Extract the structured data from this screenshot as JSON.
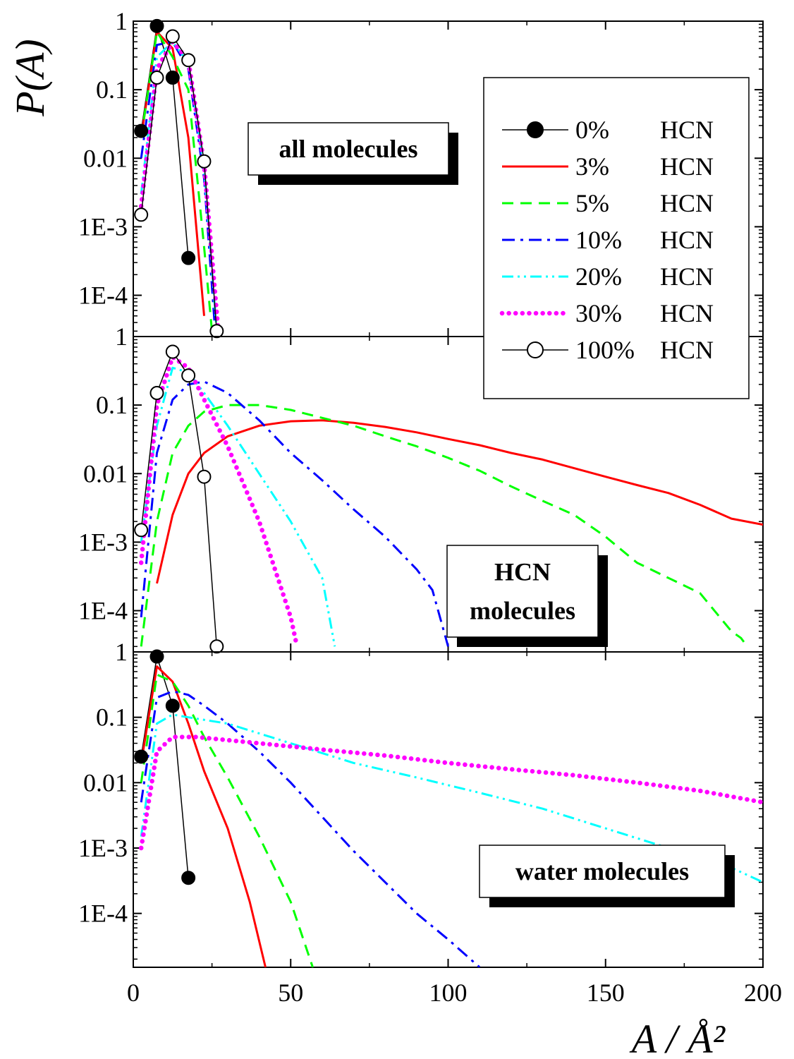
{
  "chart_data": {
    "type": "line",
    "y_scale": "log",
    "grid": false,
    "ylabel": "P(A)",
    "xlabel": "A / Å²",
    "xlim": [
      0,
      200
    ],
    "x_ticks": [
      0,
      50,
      100,
      150,
      200
    ],
    "y_tick_values": [
      1,
      0.1,
      0.01,
      0.001,
      0.0001
    ],
    "y_tick_labels": [
      "1",
      "0.1",
      "0.01",
      "1E-3",
      "1E-4"
    ],
    "legend_placement": "top-right",
    "legend": [
      {
        "key": "0",
        "pct": "0%",
        "label": "HCN",
        "color": "#000000",
        "style": "filled-circle"
      },
      {
        "key": "3",
        "pct": "3%",
        "label": "HCN",
        "color": "#ff0000",
        "style": "solid"
      },
      {
        "key": "5",
        "pct": "5%",
        "label": "HCN",
        "color": "#00ff00",
        "style": "dash"
      },
      {
        "key": "10",
        "pct": "10%",
        "label": "HCN",
        "color": "#0000ff",
        "style": "dash-dot"
      },
      {
        "key": "20",
        "pct": "20%",
        "label": "HCN",
        "color": "#00ffff",
        "style": "dash-dot-dot"
      },
      {
        "key": "30",
        "pct": "30%",
        "label": "HCN",
        "color": "#ff00ff",
        "style": "dotted"
      },
      {
        "key": "100",
        "pct": "100%",
        "label": "HCN",
        "color": "#000000",
        "style": "open-circle"
      }
    ],
    "panels": [
      {
        "box_lines": [
          "all molecules"
        ],
        "ylim": [
          2.5e-05,
          1
        ],
        "series": [
          {
            "key": "0",
            "points": [
              [
                2.5,
                0.025
              ],
              [
                7.5,
                0.85
              ],
              [
                12.5,
                0.15
              ],
              [
                17.5,
                0.00035
              ]
            ]
          },
          {
            "key": "3",
            "points": [
              [
                2.5,
                0.02
              ],
              [
                7.5,
                0.7
              ],
              [
                12.5,
                0.4
              ],
              [
                17.5,
                0.02
              ],
              [
                22.5,
                5e-05
              ]
            ]
          },
          {
            "key": "5",
            "points": [
              [
                2.5,
                0.02
              ],
              [
                7.5,
                0.7
              ],
              [
                12.5,
                0.3
              ],
              [
                17.5,
                0.1
              ],
              [
                22.5,
                0.0005
              ],
              [
                25,
                3e-05
              ]
            ]
          },
          {
            "key": "10",
            "points": [
              [
                2.5,
                0.01
              ],
              [
                7.5,
                0.45
              ],
              [
                12.5,
                0.5
              ],
              [
                17.5,
                0.2
              ],
              [
                22.5,
                0.005
              ],
              [
                26,
                3e-05
              ]
            ]
          },
          {
            "key": "20",
            "points": [
              [
                2.5,
                0.003
              ],
              [
                7.5,
                0.3
              ],
              [
                12.5,
                0.5
              ],
              [
                17.5,
                0.25
              ],
              [
                22.5,
                0.007
              ],
              [
                26.5,
                3e-05
              ]
            ]
          },
          {
            "key": "30",
            "points": [
              [
                2.5,
                0.002
              ],
              [
                7.5,
                0.2
              ],
              [
                12.5,
                0.5
              ],
              [
                17.5,
                0.27
              ],
              [
                22.5,
                0.008
              ],
              [
                27,
                3e-05
              ]
            ]
          },
          {
            "key": "100",
            "points": [
              [
                2.5,
                0.0015
              ],
              [
                7.5,
                0.15
              ],
              [
                12.5,
                0.6
              ],
              [
                17.5,
                0.27
              ],
              [
                22.5,
                0.009
              ],
              [
                26.5,
                3e-05
              ]
            ]
          }
        ]
      },
      {
        "box_lines": [
          "HCN",
          "molecules"
        ],
        "ylim": [
          2.5e-05,
          1
        ],
        "series": [
          {
            "key": "3",
            "points": [
              [
                7.5,
                0.00025
              ],
              [
                12.5,
                0.0025
              ],
              [
                17.5,
                0.01
              ],
              [
                22.5,
                0.02
              ],
              [
                30,
                0.035
              ],
              [
                40,
                0.05
              ],
              [
                50,
                0.058
              ],
              [
                60,
                0.06
              ],
              [
                70,
                0.055
              ],
              [
                80,
                0.048
              ],
              [
                90,
                0.04
              ],
              [
                100,
                0.032
              ],
              [
                110,
                0.026
              ],
              [
                120,
                0.02
              ],
              [
                130,
                0.016
              ],
              [
                140,
                0.012
              ],
              [
                150,
                0.009
              ],
              [
                160,
                0.0068
              ],
              [
                170,
                0.0052
              ],
              [
                180,
                0.0035
              ],
              [
                190,
                0.0022
              ],
              [
                200,
                0.0018
              ]
            ]
          },
          {
            "key": "5",
            "points": [
              [
                2.5,
                3e-05
              ],
              [
                7.5,
                0.002
              ],
              [
                12.5,
                0.02
              ],
              [
                17.5,
                0.05
              ],
              [
                22.5,
                0.08
              ],
              [
                30,
                0.1
              ],
              [
                40,
                0.1
              ],
              [
                50,
                0.085
              ],
              [
                60,
                0.065
              ],
              [
                70,
                0.05
              ],
              [
                80,
                0.035
              ],
              [
                90,
                0.025
              ],
              [
                100,
                0.017
              ],
              [
                110,
                0.011
              ],
              [
                120,
                0.0065
              ],
              [
                130,
                0.004
              ],
              [
                140,
                0.0025
              ],
              [
                150,
                0.0012
              ],
              [
                160,
                0.0005
              ],
              [
                170,
                0.0003
              ],
              [
                180,
                0.00018
              ],
              [
                190,
                5e-05
              ],
              [
                193,
                4e-05
              ],
              [
                195,
                3e-05
              ]
            ]
          },
          {
            "key": "10",
            "points": [
              [
                2.5,
                8e-05
              ],
              [
                7.5,
                0.02
              ],
              [
                12.5,
                0.12
              ],
              [
                17.5,
                0.2
              ],
              [
                22.5,
                0.22
              ],
              [
                30,
                0.15
              ],
              [
                40,
                0.06
              ],
              [
                50,
                0.02
              ],
              [
                60,
                0.008
              ],
              [
                70,
                0.003
              ],
              [
                80,
                0.0012
              ],
              [
                90,
                0.0004
              ],
              [
                95,
                0.0002
              ],
              [
                100,
                3e-05
              ]
            ]
          },
          {
            "key": "20",
            "points": [
              [
                2.5,
                0.001
              ],
              [
                7.5,
                0.05
              ],
              [
                12.5,
                0.35
              ],
              [
                17.5,
                0.3
              ],
              [
                22.5,
                0.15
              ],
              [
                30,
                0.05
              ],
              [
                40,
                0.01
              ],
              [
                50,
                0.002
              ],
              [
                60,
                0.0003
              ],
              [
                64,
                3e-05
              ]
            ]
          },
          {
            "key": "30",
            "points": [
              [
                2.5,
                0.0005
              ],
              [
                7.5,
                0.1
              ],
              [
                12.5,
                0.5
              ],
              [
                17.5,
                0.35
              ],
              [
                22.5,
                0.12
              ],
              [
                30,
                0.025
              ],
              [
                40,
                0.002
              ],
              [
                50,
                8e-05
              ],
              [
                52,
                3e-05
              ]
            ]
          },
          {
            "key": "100",
            "points": [
              [
                2.5,
                0.0015
              ],
              [
                7.5,
                0.15
              ],
              [
                12.5,
                0.6
              ],
              [
                17.5,
                0.27
              ],
              [
                22.5,
                0.009
              ],
              [
                26.5,
                3e-05
              ]
            ]
          }
        ]
      },
      {
        "box_lines": [
          "water molecules"
        ],
        "ylim": [
          1.5e-05,
          1
        ],
        "series": [
          {
            "key": "0",
            "points": [
              [
                2.5,
                0.025
              ],
              [
                7.5,
                0.85
              ],
              [
                12.5,
                0.15
              ],
              [
                17.5,
                0.00035
              ]
            ]
          },
          {
            "key": "3",
            "points": [
              [
                2.5,
                0.02
              ],
              [
                7.5,
                0.6
              ],
              [
                12.5,
                0.35
              ],
              [
                17.5,
                0.08
              ],
              [
                22.5,
                0.015
              ],
              [
                30,
                0.002
              ],
              [
                37,
                0.00015
              ],
              [
                42,
                1.5e-05
              ]
            ]
          },
          {
            "key": "5",
            "points": [
              [
                2.5,
                0.01
              ],
              [
                7.5,
                0.45
              ],
              [
                12.5,
                0.35
              ],
              [
                17.5,
                0.15
              ],
              [
                22.5,
                0.05
              ],
              [
                30,
                0.012
              ],
              [
                40,
                0.0015
              ],
              [
                50,
                0.00015
              ],
              [
                57,
                1.5e-05
              ]
            ]
          },
          {
            "key": "10",
            "points": [
              [
                2.5,
                0.005
              ],
              [
                7.5,
                0.2
              ],
              [
                12.5,
                0.25
              ],
              [
                17.5,
                0.22
              ],
              [
                22.5,
                0.15
              ],
              [
                30,
                0.08
              ],
              [
                40,
                0.03
              ],
              [
                50,
                0.01
              ],
              [
                60,
                0.003
              ],
              [
                70,
                0.0009
              ],
              [
                80,
                0.0003
              ],
              [
                90,
                0.0001
              ],
              [
                100,
                4e-05
              ],
              [
                110,
                1.5e-05
              ]
            ]
          },
          {
            "key": "20",
            "points": [
              [
                2.5,
                0.0015
              ],
              [
                7.5,
                0.08
              ],
              [
                12.5,
                0.11
              ],
              [
                17.5,
                0.1
              ],
              [
                30,
                0.08
              ],
              [
                50,
                0.04
              ],
              [
                70,
                0.02
              ],
              [
                90,
                0.012
              ],
              [
                110,
                0.007
              ],
              [
                130,
                0.004
              ],
              [
                150,
                0.002
              ],
              [
                170,
                0.001
              ],
              [
                190,
                0.0005
              ],
              [
                200,
                0.0003
              ]
            ]
          },
          {
            "key": "30",
            "points": [
              [
                2.5,
                0.001
              ],
              [
                7.5,
                0.03
              ],
              [
                12.5,
                0.05
              ],
              [
                20,
                0.05
              ],
              [
                40,
                0.04
              ],
              [
                60,
                0.032
              ],
              [
                80,
                0.026
              ],
              [
                100,
                0.02
              ],
              [
                120,
                0.016
              ],
              [
                140,
                0.013
              ],
              [
                160,
                0.01
              ],
              [
                180,
                0.0075
              ],
              [
                200,
                0.005
              ]
            ]
          }
        ]
      }
    ]
  }
}
